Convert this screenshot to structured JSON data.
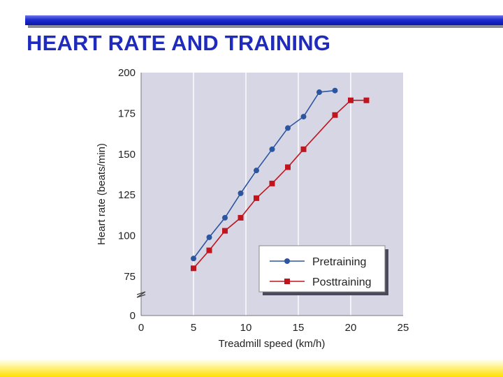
{
  "slide": {
    "title": "HEART RATE AND TRAINING"
  },
  "colors": {
    "plot_background": "#d6d6e4",
    "pretraining": "#2c55a0",
    "posttraining": "#c0151e",
    "title": "#1f2bbe"
  },
  "chart_data": {
    "type": "line",
    "xlabel": "Treadmill speed (km/h)",
    "ylabel": "Heart rate (beats/min)",
    "xlim": [
      0,
      25
    ],
    "ylim": [
      0,
      200
    ],
    "y_axis_break": [
      0,
      75
    ],
    "x_ticks": [
      "0",
      "5",
      "10",
      "15",
      "20",
      "25"
    ],
    "y_ticks": [
      "0",
      "75",
      "100",
      "125",
      "150",
      "175",
      "200"
    ],
    "legend": "lower-right",
    "series": [
      {
        "name": "Pretraining",
        "marker": "circle",
        "points": [
          [
            5,
            86
          ],
          [
            6.5,
            99
          ],
          [
            8,
            111
          ],
          [
            9.5,
            126
          ],
          [
            11,
            140
          ],
          [
            12.5,
            153
          ],
          [
            14,
            166
          ],
          [
            15.5,
            173
          ],
          [
            17,
            188
          ],
          [
            18.5,
            189
          ]
        ]
      },
      {
        "name": "Posttraining",
        "marker": "square",
        "points": [
          [
            5,
            80
          ],
          [
            6.5,
            91
          ],
          [
            8,
            103
          ],
          [
            9.5,
            111
          ],
          [
            11,
            123
          ],
          [
            12.5,
            132
          ],
          [
            14,
            142
          ],
          [
            15.5,
            153
          ],
          [
            18.5,
            174
          ],
          [
            20,
            183
          ],
          [
            21.5,
            183
          ]
        ]
      }
    ]
  }
}
